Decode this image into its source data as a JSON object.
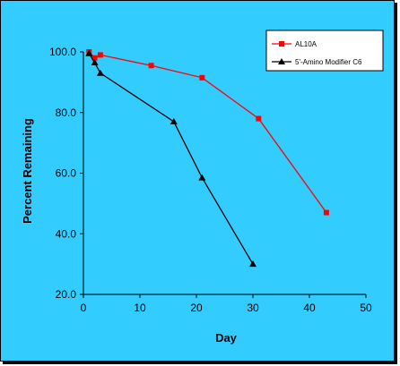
{
  "chart_data": {
    "type": "line",
    "title": "",
    "xlabel": "Day",
    "ylabel": "Percent Remaining",
    "xlim": [
      0,
      50
    ],
    "ylim": [
      20,
      100
    ],
    "x_ticks": [
      0,
      10,
      20,
      30,
      40,
      50
    ],
    "y_ticks": [
      20,
      40,
      60,
      80,
      100
    ],
    "x_tick_labels": [
      "0",
      "10",
      "20",
      "30",
      "40",
      "50"
    ],
    "y_tick_labels": [
      "20.0",
      "40.0",
      "60.0",
      "80.0",
      "100.0"
    ],
    "grid": false,
    "legend_position": "top-right",
    "background_color": "#33ccff",
    "plot_area_color": "#33ccff",
    "series": [
      {
        "name": "AL10A",
        "color": "#ff0000",
        "marker": "square",
        "x": [
          1,
          2,
          3,
          12,
          21,
          31,
          43
        ],
        "y": [
          100.0,
          98.0,
          99.0,
          95.5,
          91.5,
          78.0,
          47.0
        ]
      },
      {
        "name": "5'-Amino Modifier C6",
        "color": "#000000",
        "marker": "triangle",
        "x": [
          1,
          2,
          3,
          16,
          21,
          30
        ],
        "y": [
          99.5,
          96.5,
          93.0,
          77.0,
          58.5,
          30.0
        ]
      }
    ]
  }
}
